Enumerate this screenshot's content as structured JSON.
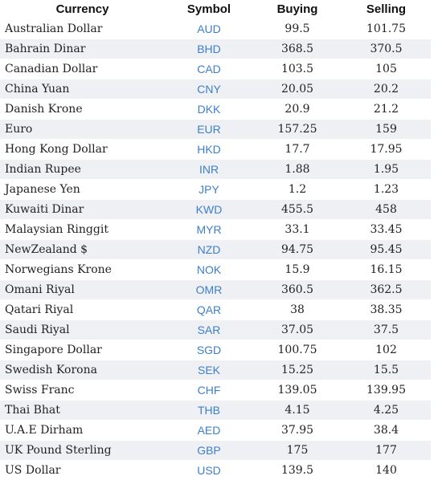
{
  "table": {
    "headers": {
      "currency": "Currency",
      "symbol": "Symbol",
      "buying": "Buying",
      "selling": "Selling"
    },
    "rows": [
      {
        "currency": "Australian Dollar",
        "symbol": "AUD",
        "buying": "99.5",
        "selling": "101.75"
      },
      {
        "currency": "Bahrain Dinar",
        "symbol": "BHD",
        "buying": "368.5",
        "selling": "370.5"
      },
      {
        "currency": "Canadian Dollar",
        "symbol": "CAD",
        "buying": "103.5",
        "selling": "105"
      },
      {
        "currency": "China Yuan",
        "symbol": "CNY",
        "buying": "20.05",
        "selling": "20.2"
      },
      {
        "currency": "Danish Krone",
        "symbol": "DKK",
        "buying": "20.9",
        "selling": "21.2"
      },
      {
        "currency": "Euro",
        "symbol": "EUR",
        "buying": "157.25",
        "selling": "159"
      },
      {
        "currency": "Hong Kong Dollar",
        "symbol": "HKD",
        "buying": "17.7",
        "selling": "17.95"
      },
      {
        "currency": "Indian Rupee",
        "symbol": "INR",
        "buying": "1.88",
        "selling": "1.95"
      },
      {
        "currency": "Japanese Yen",
        "symbol": "JPY",
        "buying": "1.2",
        "selling": "1.23"
      },
      {
        "currency": "Kuwaiti Dinar",
        "symbol": "KWD",
        "buying": "455.5",
        "selling": "458"
      },
      {
        "currency": "Malaysian Ringgit",
        "symbol": "MYR",
        "buying": "33.1",
        "selling": "33.45"
      },
      {
        "currency": "NewZealand $",
        "symbol": "NZD",
        "buying": "94.75",
        "selling": "95.45"
      },
      {
        "currency": "Norwegians Krone",
        "symbol": "NOK",
        "buying": "15.9",
        "selling": "16.15"
      },
      {
        "currency": "Omani Riyal",
        "symbol": "OMR",
        "buying": "360.5",
        "selling": "362.5"
      },
      {
        "currency": "Qatari Riyal",
        "symbol": "QAR",
        "buying": "38",
        "selling": "38.35"
      },
      {
        "currency": "Saudi Riyal",
        "symbol": "SAR",
        "buying": "37.05",
        "selling": "37.5"
      },
      {
        "currency": "Singapore Dollar",
        "symbol": "SGD",
        "buying": "100.75",
        "selling": "102"
      },
      {
        "currency": "Swedish Korona",
        "symbol": "SEK",
        "buying": "15.25",
        "selling": "15.5"
      },
      {
        "currency": "Swiss Franc",
        "symbol": "CHF",
        "buying": "139.05",
        "selling": "139.95"
      },
      {
        "currency": "Thai Bhat",
        "symbol": "THB",
        "buying": "4.15",
        "selling": "4.25"
      },
      {
        "currency": "U.A.E Dirham",
        "symbol": "AED",
        "buying": "37.95",
        "selling": "38.4"
      },
      {
        "currency": "UK Pound Sterling",
        "symbol": "GBP",
        "buying": "175",
        "selling": "177"
      },
      {
        "currency": "US Dollar",
        "symbol": "USD",
        "buying": "139.5",
        "selling": "140"
      }
    ]
  },
  "colors": {
    "symbol_text": "#3d7fc9",
    "stripe_row": "#eef0f3",
    "body_text": "#222222"
  }
}
